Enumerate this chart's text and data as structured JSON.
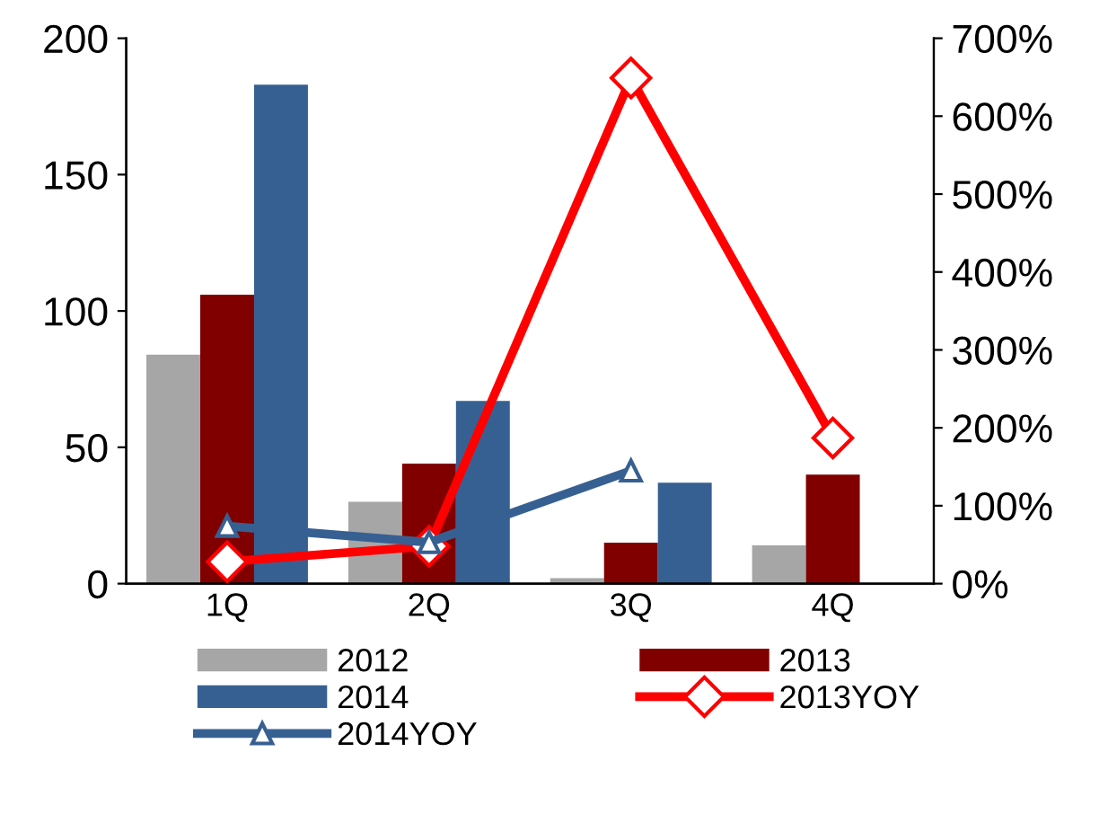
{
  "chart_data": {
    "type": "bar",
    "categories": [
      "1Q",
      "2Q",
      "3Q",
      "4Q"
    ],
    "series": [
      {
        "name": "2012",
        "color": "#a6a6a6",
        "values": [
          84,
          30,
          2,
          14
        ]
      },
      {
        "name": "2013",
        "color": "#800000",
        "values": [
          106,
          44,
          15,
          40
        ]
      },
      {
        "name": "2014",
        "color": "#376092",
        "values": [
          183,
          67,
          37,
          null
        ]
      },
      {
        "name": "2013YOY",
        "type": "line",
        "axis": "y2",
        "color": "#ff0000",
        "marker": "diamond",
        "values": [
          28,
          48,
          649,
          187
        ]
      },
      {
        "name": "2014YOY",
        "type": "line",
        "axis": "y2",
        "color": "#376092",
        "marker": "triangle",
        "values": [
          74,
          53,
          145,
          null
        ]
      }
    ],
    "ylim": [
      0,
      200
    ],
    "yticks": [
      0,
      50,
      100,
      150,
      200
    ],
    "y2lim": [
      0,
      700
    ],
    "y2ticks": [
      {
        "value": 0,
        "label": "0%"
      },
      {
        "value": 100,
        "label": "100%"
      },
      {
        "value": 200,
        "label": "200%"
      },
      {
        "value": 300,
        "label": "300%"
      },
      {
        "value": 400,
        "label": "400%"
      },
      {
        "value": 500,
        "label": "500%"
      },
      {
        "value": 600,
        "label": "600%"
      },
      {
        "value": 700,
        "label": "700%"
      }
    ],
    "grid": false,
    "legend": "bottom"
  }
}
